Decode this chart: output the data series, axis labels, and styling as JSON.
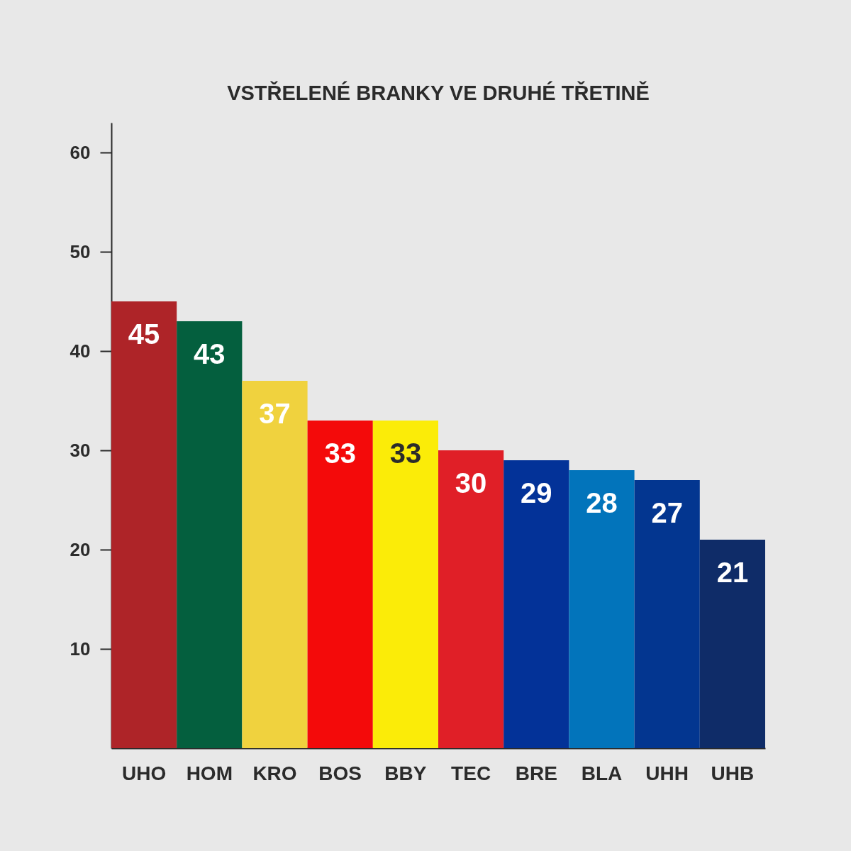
{
  "chart_data": {
    "type": "bar",
    "title": "VSTŘELENÉ BRANKY VE DRUHÉ TŘETINĚ",
    "categories": [
      "UHO",
      "HOM",
      "KRO",
      "BOS",
      "BBY",
      "TEC",
      "BRE",
      "BLA",
      "UHH",
      "UHB"
    ],
    "values": [
      45,
      43,
      37,
      33,
      33,
      30,
      29,
      28,
      27,
      21
    ],
    "colors": [
      "#ae2428",
      "#045f3e",
      "#f0d23e",
      "#f40a0a",
      "#fbec08",
      "#e01f27",
      "#033298",
      "#0274bb",
      "#033690",
      "#0f2c68"
    ],
    "ylim": [
      0,
      63
    ],
    "yticks": [
      10,
      20,
      30,
      40,
      50,
      60
    ],
    "grid": false,
    "data_labels": true,
    "legend": false
  }
}
